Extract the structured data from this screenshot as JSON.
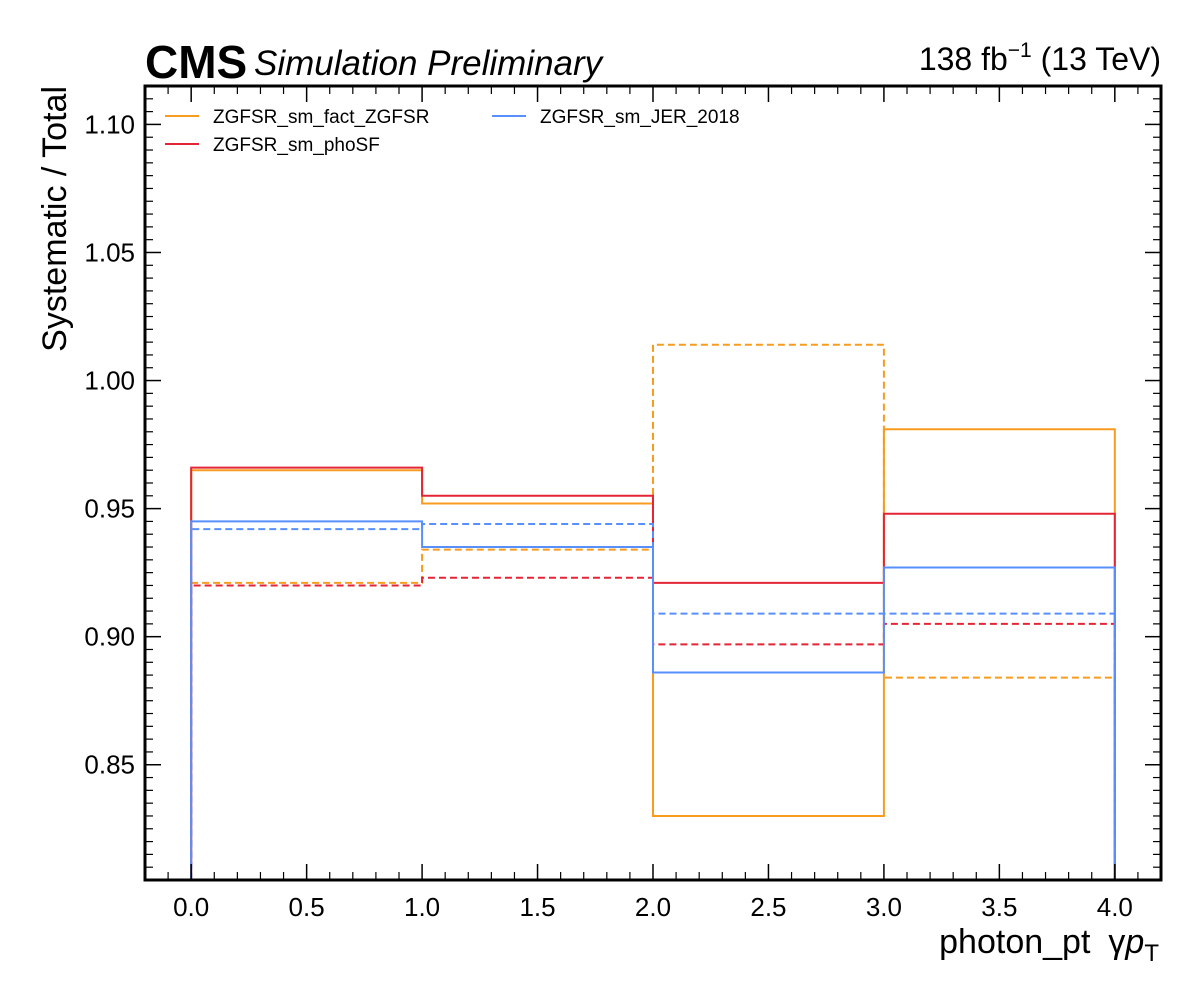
{
  "header": {
    "experiment": "CMS",
    "subtitle": "Simulation Preliminary",
    "lumi_value": "138 fb",
    "lumi_exponent": "−1",
    "lumi_energy": " (13 TeV)"
  },
  "chart_data": {
    "type": "step",
    "title": "",
    "xlabel": "photon_pt",
    "xlabel_suffix": "γ",
    "xlabel_symbol": "p",
    "xlabel_subscript": "T",
    "ylabel": "Systematic / Total",
    "xlim": [
      -0.2,
      4.2
    ],
    "ylim": [
      0.805,
      1.115
    ],
    "x_ticks": [
      0.0,
      0.5,
      1.0,
      1.5,
      2.0,
      2.5,
      3.0,
      3.5,
      4.0
    ],
    "x_tick_labels": [
      "0.0",
      "0.5",
      "1.0",
      "1.5",
      "2.0",
      "2.5",
      "3.0",
      "3.5",
      "4.0"
    ],
    "y_ticks": [
      0.85,
      0.9,
      0.95,
      1.0,
      1.05,
      1.1
    ],
    "y_tick_labels": [
      "0.85",
      "0.90",
      "0.95",
      "1.00",
      "1.05",
      "1.10"
    ],
    "legend_position": "upper-left",
    "bin_edges": [
      0,
      1,
      2,
      3,
      4
    ],
    "series": [
      {
        "name": "ZGFSR_sm_fact_ZGFSR",
        "color": "#f89c20",
        "up": [
          0.965,
          0.952,
          0.83,
          0.981
        ],
        "down": [
          0.921,
          0.934,
          1.014,
          0.884
        ]
      },
      {
        "name": "ZGFSR_sm_phoSF",
        "color": "#e42536",
        "up": [
          0.966,
          0.955,
          0.921,
          0.948
        ],
        "down": [
          0.92,
          0.923,
          0.897,
          0.905
        ]
      },
      {
        "name": "ZGFSR_sm_JER_2018",
        "color": "#5790fc",
        "up": [
          0.945,
          0.935,
          0.886,
          0.927
        ],
        "down": [
          0.942,
          0.944,
          0.909,
          0.909
        ]
      }
    ]
  }
}
